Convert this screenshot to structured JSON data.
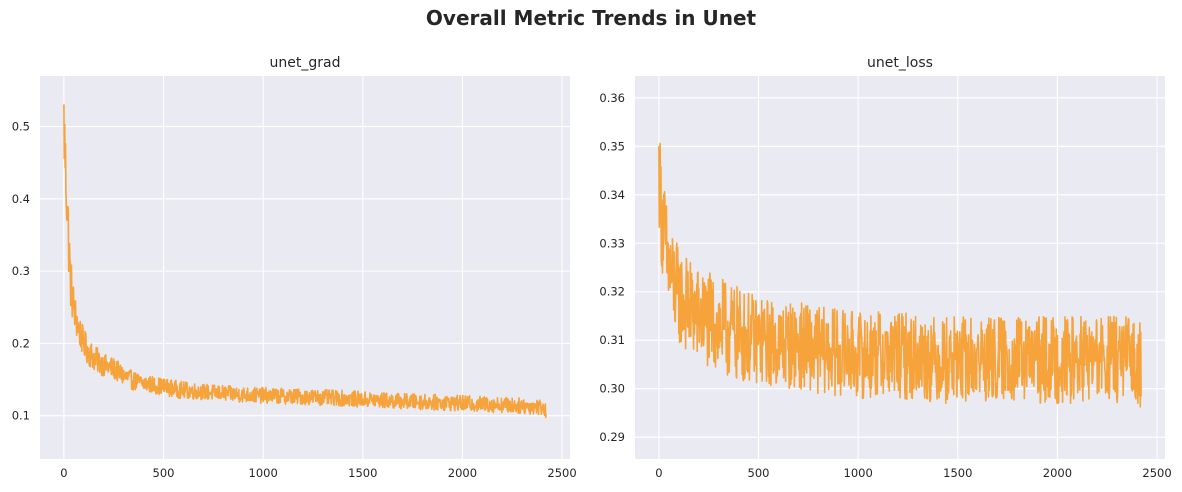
{
  "figure": {
    "title": "Overall Metric Trends in Unet"
  },
  "colors": {
    "line": "#f5a33a",
    "plot_background": "#eaeaf2",
    "grid": "#ffffff",
    "text": "#262626"
  },
  "chart_data": [
    {
      "type": "line",
      "title": "unet_grad",
      "xlabel": "",
      "ylabel": "",
      "xlim": [
        -120,
        2540
      ],
      "ylim": [
        0.04,
        0.57
      ],
      "xticks": [
        0,
        500,
        1000,
        1500,
        2000,
        2500
      ],
      "yticks": [
        0.1,
        0.2,
        0.3,
        0.4,
        0.5
      ],
      "grid": true,
      "series": [
        {
          "color": "#f5a33a",
          "x": [
            0,
            10,
            20,
            30,
            40,
            50,
            60,
            80,
            100,
            120,
            150,
            200,
            250,
            300,
            350,
            400,
            500,
            600,
            700,
            800,
            900,
            1000,
            1200,
            1400,
            1600,
            1800,
            2000,
            2200,
            2400,
            2420
          ],
          "y": [
            0.505,
            0.43,
            0.37,
            0.3,
            0.27,
            0.25,
            0.235,
            0.215,
            0.2,
            0.19,
            0.18,
            0.17,
            0.165,
            0.155,
            0.148,
            0.145,
            0.14,
            0.135,
            0.133,
            0.131,
            0.129,
            0.128,
            0.126,
            0.124,
            0.121,
            0.119,
            0.117,
            0.115,
            0.112,
            0.105
          ],
          "noise_band": [
            0.06,
            0.05,
            0.05,
            0.045,
            0.035,
            0.03,
            0.025,
            0.022,
            0.02,
            0.02,
            0.018,
            0.016,
            0.015,
            0.014,
            0.013,
            0.012,
            0.012,
            0.012,
            0.011,
            0.011,
            0.011,
            0.011,
            0.011,
            0.011,
            0.011,
            0.011,
            0.011,
            0.011,
            0.011,
            0.01
          ]
        }
      ]
    },
    {
      "type": "line",
      "title": "unet_loss",
      "xlabel": "",
      "ylabel": "",
      "xlim": [
        -120,
        2540
      ],
      "ylim": [
        0.2855,
        0.3645
      ],
      "xticks": [
        0,
        500,
        1000,
        1500,
        2000,
        2500
      ],
      "yticks": [
        0.29,
        0.3,
        0.31,
        0.32,
        0.33,
        0.34,
        0.35,
        0.36
      ],
      "grid": true,
      "series": [
        {
          "color": "#f5a33a",
          "x": [
            0,
            10,
            20,
            30,
            40,
            50,
            60,
            80,
            100,
            150,
            200,
            250,
            300,
            400,
            500,
            600,
            700,
            800,
            1000,
            1200,
            1400,
            1600,
            1800,
            2000,
            2200,
            2400,
            2420
          ],
          "y": [
            0.345,
            0.338,
            0.334,
            0.33,
            0.327,
            0.325,
            0.323,
            0.321,
            0.319,
            0.317,
            0.315,
            0.314,
            0.313,
            0.311,
            0.31,
            0.309,
            0.309,
            0.308,
            0.307,
            0.307,
            0.306,
            0.306,
            0.306,
            0.306,
            0.306,
            0.306,
            0.305
          ],
          "noise_band": [
            0.01,
            0.012,
            0.012,
            0.012,
            0.011,
            0.011,
            0.011,
            0.011,
            0.01,
            0.01,
            0.01,
            0.01,
            0.01,
            0.01,
            0.009,
            0.009,
            0.009,
            0.009,
            0.009,
            0.009,
            0.009,
            0.009,
            0.009,
            0.009,
            0.009,
            0.009,
            0.009
          ]
        }
      ]
    }
  ]
}
